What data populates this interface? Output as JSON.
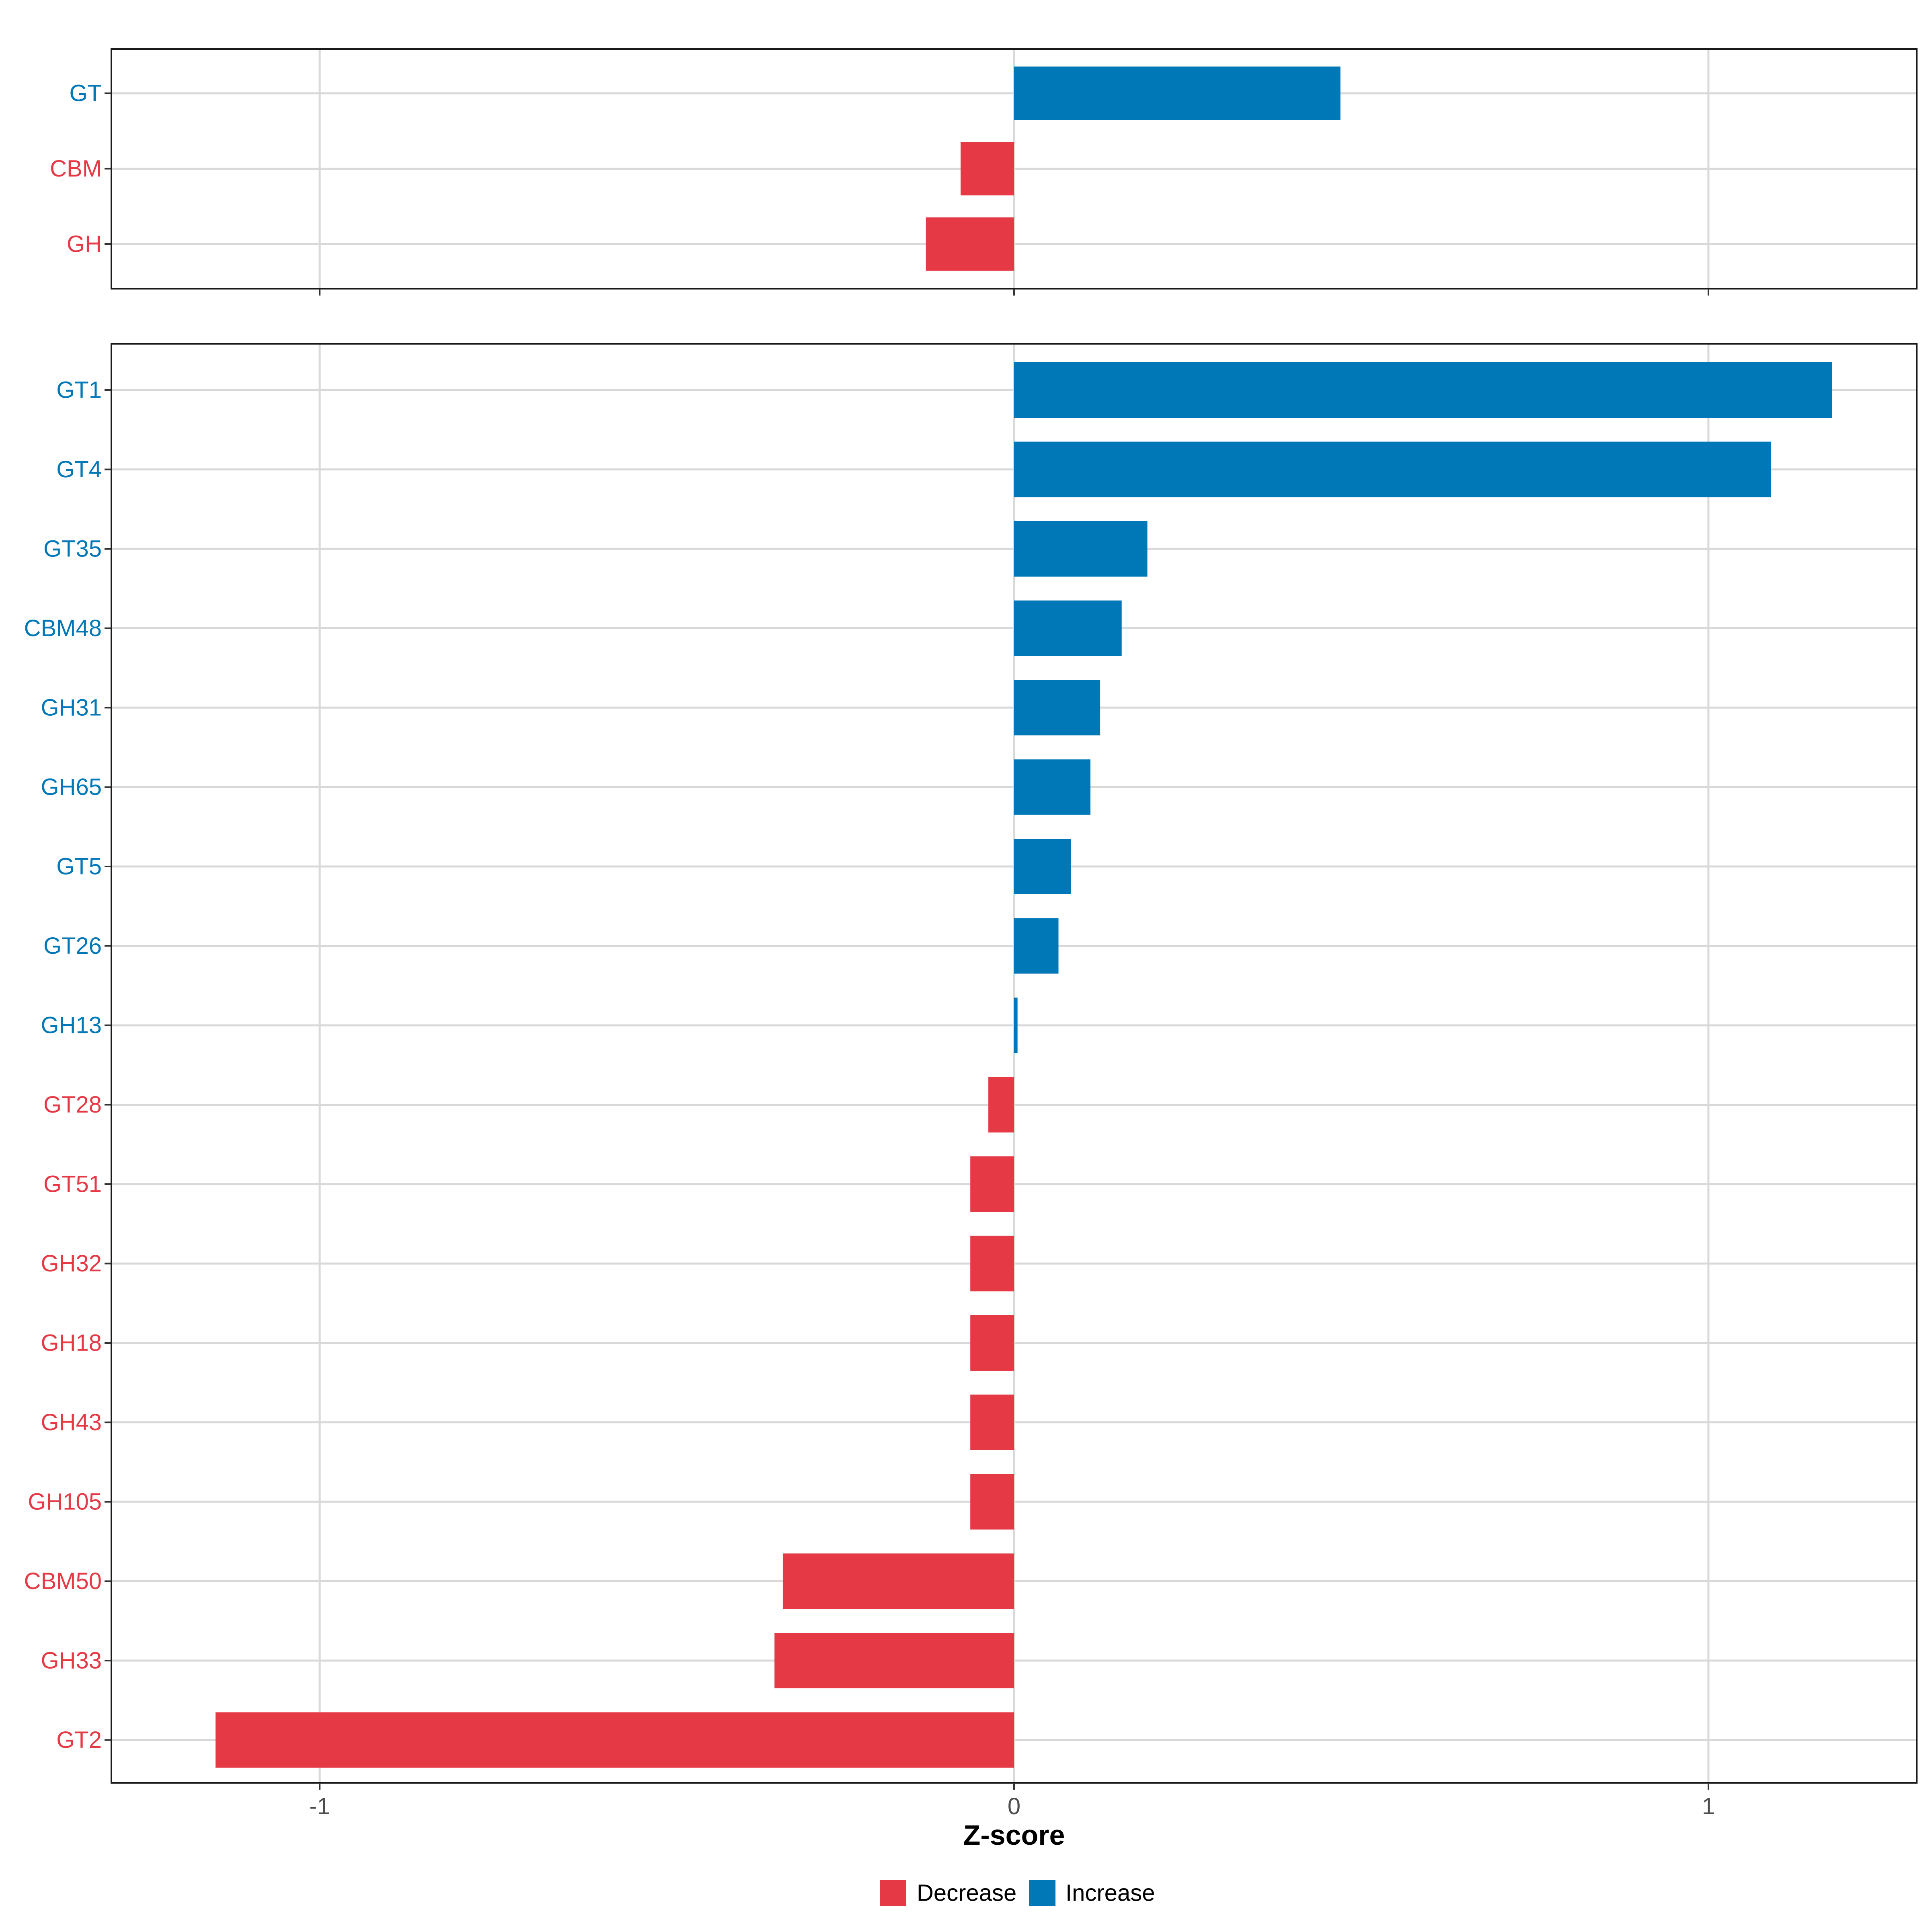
{
  "chart_data": {
    "type": "bar",
    "orientation": "horizontal",
    "xlabel": "Z-score",
    "xlim": [
      -1.3,
      1.3
    ],
    "xticks": [
      {
        "value": -1,
        "label": "-1"
      },
      {
        "value": 0,
        "label": "0"
      },
      {
        "value": 1,
        "label": "1"
      }
    ],
    "grid": true,
    "legend": {
      "position": "bottom",
      "items": [
        {
          "label": "Decrease",
          "color": "#E63946"
        },
        {
          "label": "Increase",
          "color": "#0077B6"
        }
      ]
    },
    "panels": [
      {
        "categories": [
          "GT",
          "CBM",
          "GH"
        ],
        "values": [
          0.47,
          -0.077,
          -0.127
        ]
      },
      {
        "categories": [
          "GT1",
          "GT4",
          "GT35",
          "CBM48",
          "GH31",
          "GH65",
          "GT5",
          "GT26",
          "GH13",
          "GT28",
          "GT51",
          "GH32",
          "GH18",
          "GH43",
          "GH105",
          "CBM50",
          "GH33",
          "GT2"
        ],
        "values": [
          1.178,
          1.09,
          0.192,
          0.155,
          0.124,
          0.11,
          0.082,
          0.064,
          0.005,
          -0.037,
          -0.063,
          -0.063,
          -0.063,
          -0.063,
          -0.063,
          -0.333,
          -0.345,
          -1.15
        ]
      }
    ]
  }
}
